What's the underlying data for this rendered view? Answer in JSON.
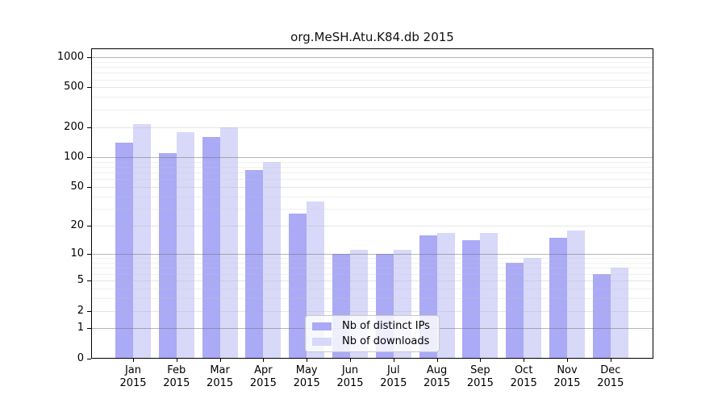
{
  "chart_data": {
    "type": "bar",
    "title": "org.MeSH.Atu.K84.db 2015",
    "categories": [
      "Jan",
      "Feb",
      "Mar",
      "Apr",
      "May",
      "Jun",
      "Jul",
      "Aug",
      "Sep",
      "Oct",
      "Nov",
      "Dec"
    ],
    "year": "2015",
    "series": [
      {
        "name": "Nb of distinct IPs",
        "color": "#aaaaf6",
        "values": [
          140,
          110,
          160,
          75,
          27,
          10,
          10,
          16,
          14,
          8,
          15,
          6
        ]
      },
      {
        "name": "Nb of downloads",
        "color": "#d8d8f8",
        "values": [
          215,
          180,
          200,
          90,
          36,
          11,
          11,
          17,
          17,
          9,
          18,
          7
        ]
      }
    ],
    "yscale": "log1p",
    "y_ticks": [
      0,
      1,
      2,
      5,
      10,
      20,
      50,
      100,
      200,
      500,
      1000
    ],
    "ylim": [
      0,
      1100
    ],
    "grid": "horizontal major and minor gridlines",
    "legend_position": "inside bottom-center",
    "xlabel": "",
    "ylabel": ""
  },
  "colors": {
    "ips_bar": "#aaaaf6",
    "downloads_bar": "#d8d8f8",
    "major_gridline": "#b5b5b5",
    "minor_gridline": "#efefef",
    "axis": "#000000",
    "background": "#ffffff"
  }
}
